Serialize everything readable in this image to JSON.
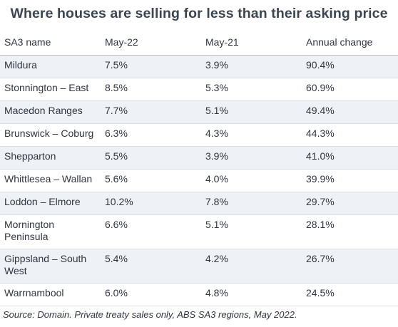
{
  "title": "Where houses are selling for less than their asking price",
  "columns": [
    "SA3 name",
    "May-22",
    "May-21",
    "Annual change"
  ],
  "rows": [
    {
      "name": "Mildura",
      "may22": "7.5%",
      "may21": "3.9%",
      "change": "90.4%"
    },
    {
      "name": "Stonnington – East",
      "may22": "8.5%",
      "may21": "5.3%",
      "change": "60.9%"
    },
    {
      "name": "Macedon Ranges",
      "may22": "7.7%",
      "may21": "5.1%",
      "change": "49.4%"
    },
    {
      "name": "Brunswick – Coburg",
      "may22": "6.3%",
      "may21": "4.3%",
      "change": "44.3%"
    },
    {
      "name": "Shepparton",
      "may22": "5.5%",
      "may21": "3.9%",
      "change": "41.0%"
    },
    {
      "name": "Whittlesea – Wallan",
      "may22": "5.6%",
      "may21": "4.0%",
      "change": "39.9%"
    },
    {
      "name": "Loddon – Elmore",
      "may22": "10.2%",
      "may21": "7.8%",
      "change": "29.7%"
    },
    {
      "name": "Mornington Peninsula",
      "may22": "6.6%",
      "may21": "5.1%",
      "change": "28.1%"
    },
    {
      "name": "Gippsland – South West",
      "may22": "5.4%",
      "may21": "4.2%",
      "change": "26.7%"
    },
    {
      "name": "Warrnambool",
      "may22": "6.0%",
      "may21": "4.8%",
      "change": "24.5%"
    }
  ],
  "source": "Source: Domain. Private treaty sales only, ABS SA3 regions, May 2022."
}
